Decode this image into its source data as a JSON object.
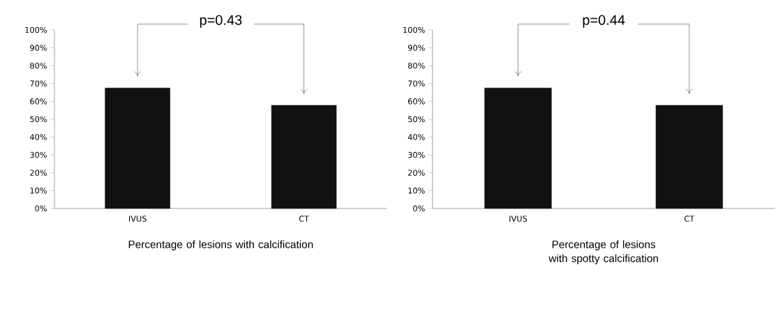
{
  "chart_data": [
    {
      "type": "bar",
      "categories": [
        "IVUS",
        "CT"
      ],
      "values": [
        67.5,
        57.8
      ],
      "color": "#111111",
      "xlabel": "Percentage of lesions with calcification",
      "annotations": [
        "p=0.43"
      ],
      "ylim": [
        0,
        100
      ],
      "yticks": [
        {
          "value": 0,
          "label": "0%"
        },
        {
          "value": 10,
          "label": "10%"
        },
        {
          "value": 20,
          "label": "20%"
        },
        {
          "value": 30,
          "label": "30%"
        },
        {
          "value": 40,
          "label": "40%"
        },
        {
          "value": 50,
          "label": "50%"
        },
        {
          "value": 60,
          "label": "60%"
        },
        {
          "value": 70,
          "label": "70%"
        },
        {
          "value": 80,
          "label": "80%"
        },
        {
          "value": 90,
          "label": "90%"
        },
        {
          "value": 100,
          "label": "100%"
        }
      ]
    },
    {
      "type": "bar",
      "categories": [
        "IVUS",
        "CT"
      ],
      "values": [
        67.5,
        57.8
      ],
      "color": "#111111",
      "xlabel": "Percentage of lesions with spotty calcification",
      "annotations": [
        "p=0.44"
      ],
      "ylim": [
        0,
        100
      ],
      "yticks": [
        {
          "value": 0,
          "label": "0%"
        },
        {
          "value": 10,
          "label": "10%"
        },
        {
          "value": 20,
          "label": "20%"
        },
        {
          "value": 30,
          "label": "30%"
        },
        {
          "value": 40,
          "label": "40%"
        },
        {
          "value": 50,
          "label": "50%"
        },
        {
          "value": 60,
          "label": "60%"
        },
        {
          "value": 70,
          "label": "70%"
        },
        {
          "value": 80,
          "label": "80%"
        },
        {
          "value": 90,
          "label": "90%"
        },
        {
          "value": 100,
          "label": "100%"
        }
      ]
    }
  ]
}
